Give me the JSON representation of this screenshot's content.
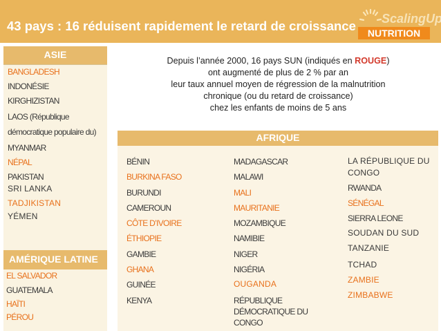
{
  "header": {
    "title": "43 pays : 16 réduisent rapidement le retard de croissance",
    "logo_text": "ScalingUp",
    "logo_band": "NUTRITION"
  },
  "intro": {
    "line1_pre": "Depuis l’année 2000, 16 pays SUN (indiqués en ",
    "line1_red": "ROUGE",
    "line1_post": ")",
    "line2": "ont augmenté de plus de 2 % par an",
    "line3": "leur taux annuel moyen de régression de la malnutrition",
    "line4": "chronique (ou du retard de croissance)",
    "line5": "chez les enfants de moins de 5 ans"
  },
  "regions": {
    "asie": {
      "label": "ASIE",
      "items": [
        "BANGLADESH",
        "INDONÉSIE",
        "KIRGHIZISTAN",
        "LAOS (République",
        "démocratique populaire du)",
        "MYANMAR",
        "NÉPAL",
        "PAKISTAN",
        "SRI LANKA",
        "TADJIKISTAN",
        "YÉMEN"
      ]
    },
    "latam": {
      "label": "AMÉRIQUE LATINE",
      "items": [
        "EL SALVADOR",
        "GUATEMALA",
        "HAÏTI",
        "PÉROU"
      ]
    },
    "afrique": {
      "label": "AFRIQUE",
      "col1": [
        "BÉNIN",
        "BURKINA FASO",
        "BURUNDI",
        "CAMEROUN",
        "CÔTE D’IVOIRE",
        "ÉTHIOPIE",
        "GAMBIE",
        "GHANA",
        "GUINÉE",
        "KENYA"
      ],
      "col2": [
        "MADAGASCAR",
        "MALAWI",
        "MALI",
        "MAURITANIE",
        "MOZAMBIQUE",
        "NAMIBIE",
        "NIGER",
        "NIGÉRIA",
        "OUGANDA",
        "RÉPUBLIQUE",
        "DÉMOCRATIQUE DU",
        "CONGO"
      ],
      "col3": [
        "LA RÉPUBLIQUE DU",
        "CONGO",
        "RWANDA",
        "SÉNÉGAL",
        "SIERRA LEONE",
        "SOUDAN DU SUD",
        "TANZANIE",
        "TCHAD",
        "ZAMBIE",
        "ZIMBABWE"
      ]
    }
  },
  "colors": {
    "header": "#eab55a",
    "band": "#e7ba6c",
    "highlight": "#e8711c",
    "text": "#3a3a3a"
  }
}
